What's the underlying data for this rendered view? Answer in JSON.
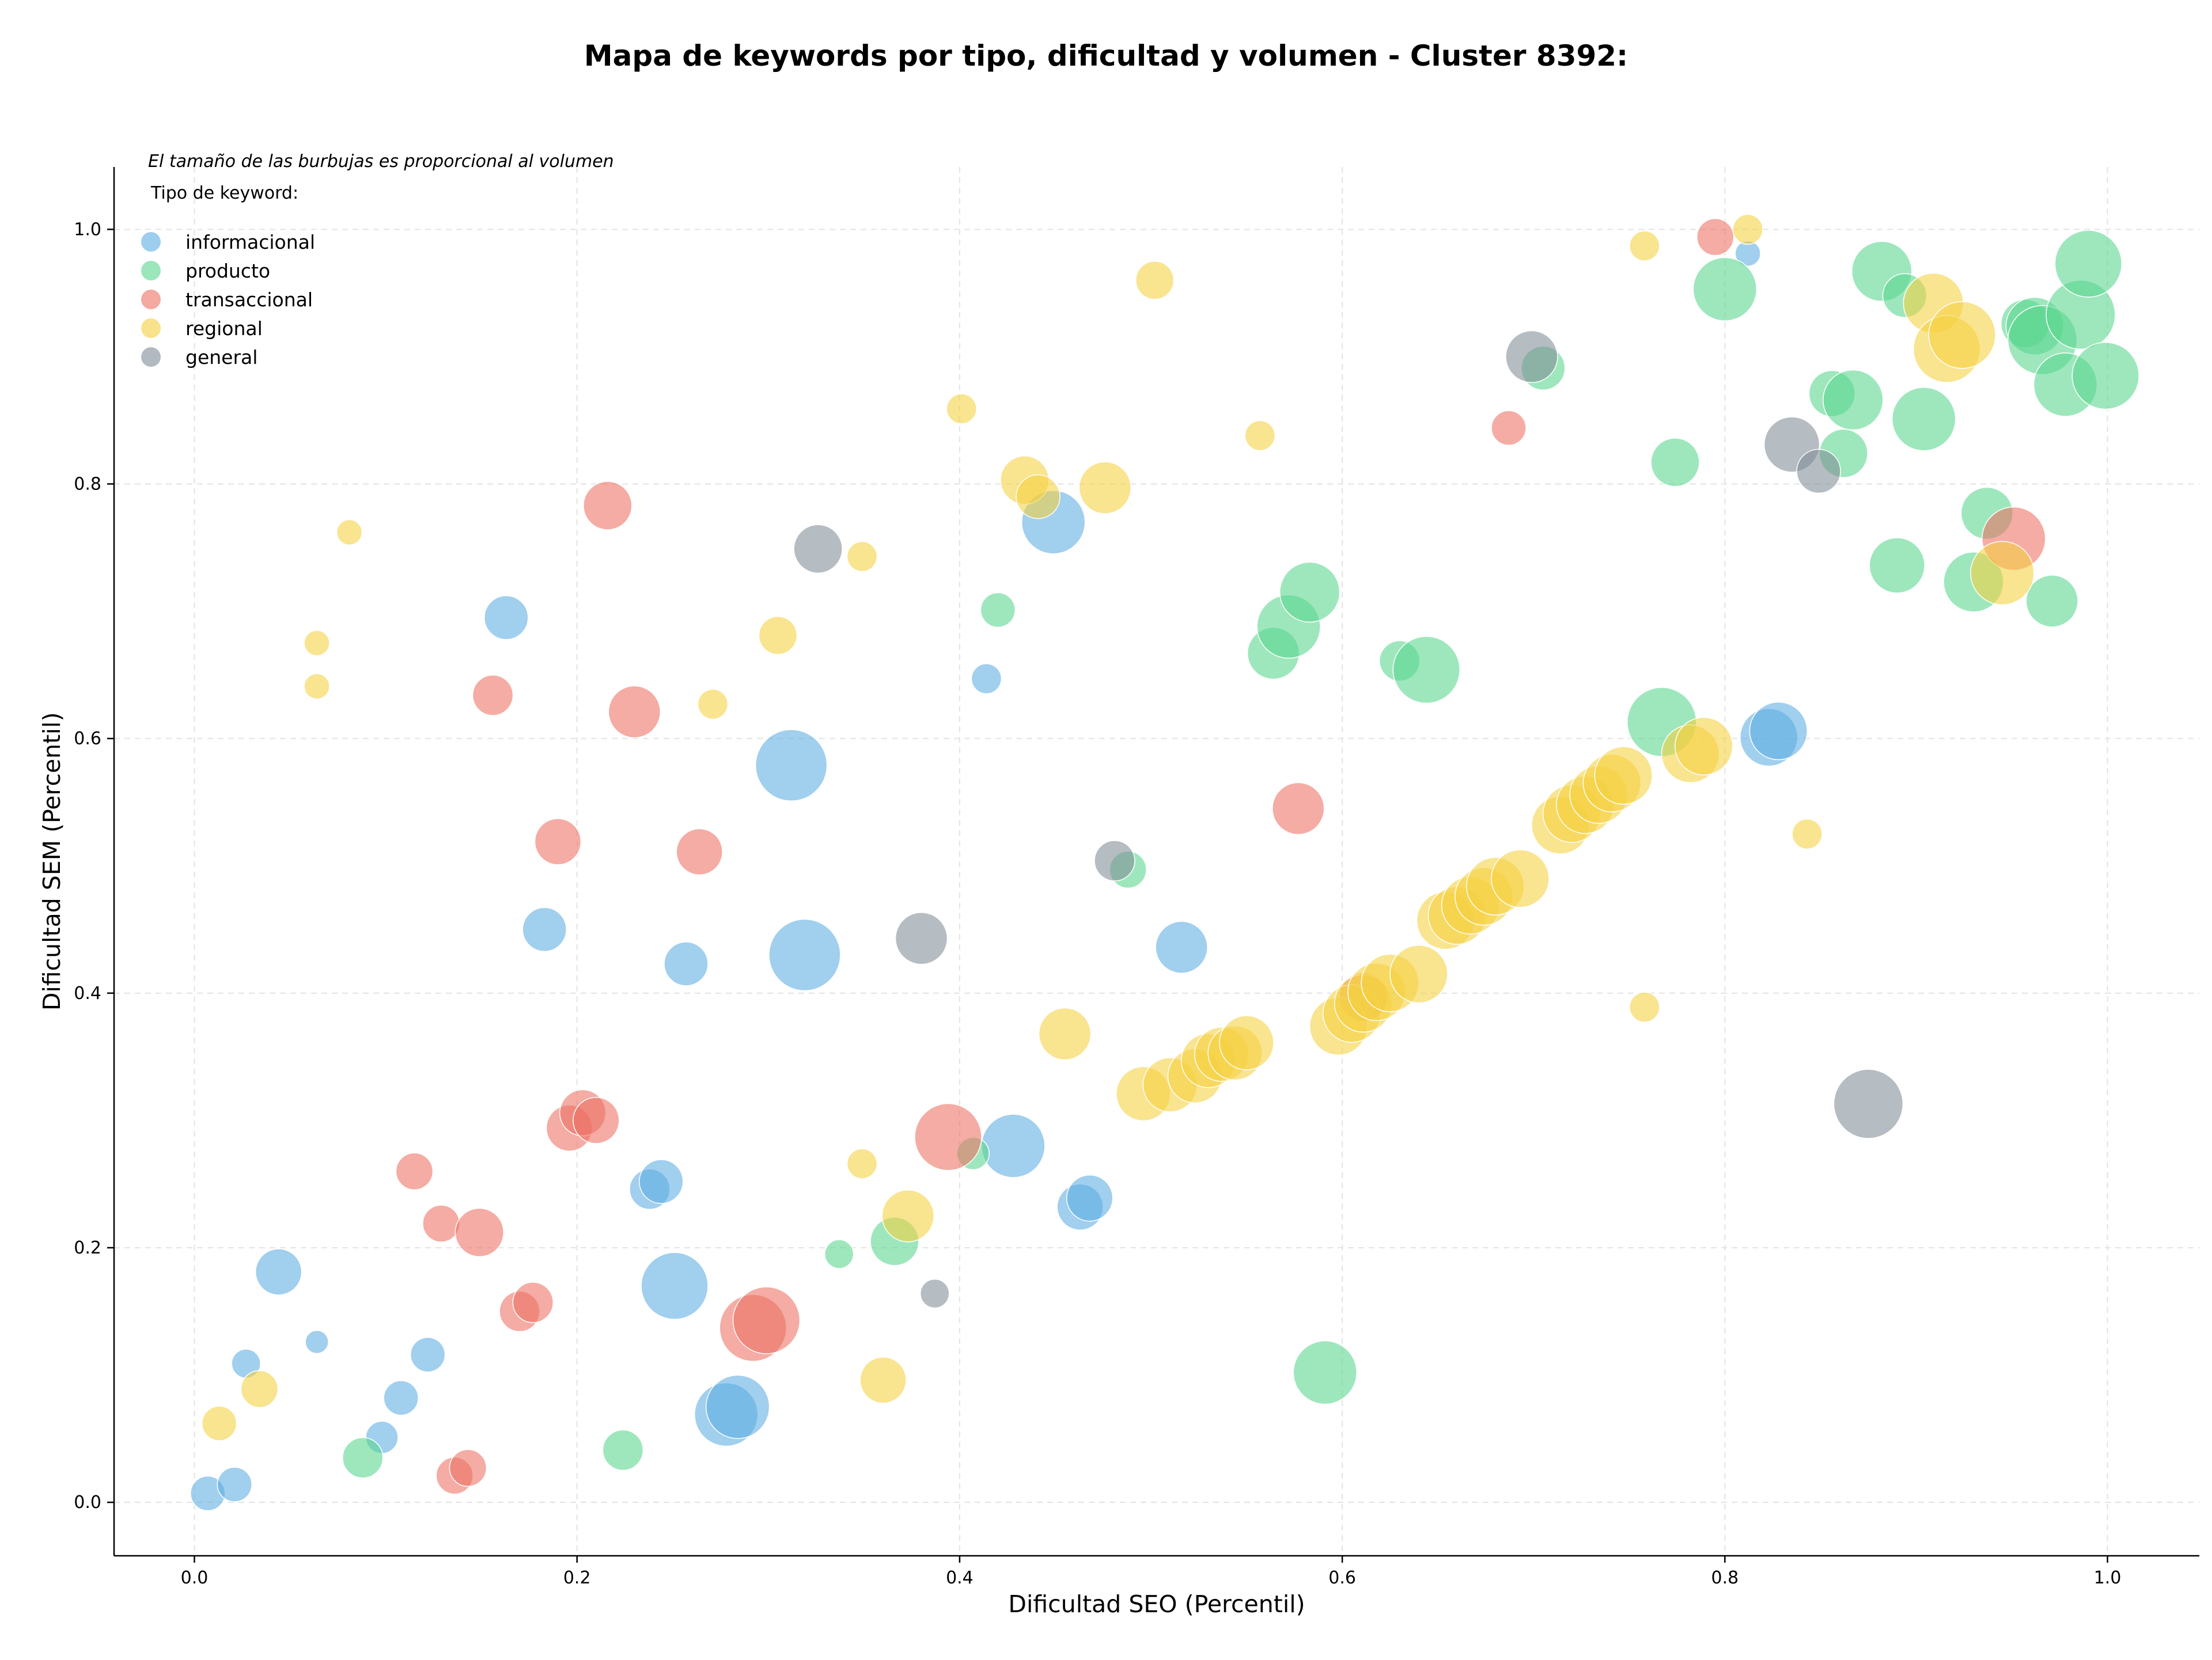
{
  "chart_data": {
    "type": "scatter",
    "title": "Mapa de keywords por tipo, dificultad y volumen - Cluster 8392:",
    "xlabel": "Dificultad SEO (Percentil)",
    "ylabel": "Dificultad SEM (Percentil)",
    "xlim": [
      -0.042,
      1.048
    ],
    "ylim": [
      -0.042,
      1.049
    ],
    "xticks": [
      "0.0",
      "0.2",
      "0.4",
      "0.6",
      "0.8",
      "1.0"
    ],
    "yticks": [
      "0.0",
      "0.2",
      "0.4",
      "0.6",
      "0.8",
      "1.0"
    ],
    "grid": true,
    "note": "El tamaño de las burbujas es proporcional al volumen",
    "legend_title": "Tipo de keyword:",
    "legend_position": "top-left",
    "series": [
      {
        "name": "informacional",
        "color": "#5dade2",
        "points": [
          [
            0.007,
            0.007,
            30
          ],
          [
            0.021,
            0.014,
            30
          ],
          [
            0.027,
            0.109,
            25
          ],
          [
            0.044,
            0.181,
            40
          ],
          [
            0.064,
            0.126,
            20
          ],
          [
            0.098,
            0.051,
            28
          ],
          [
            0.108,
            0.082,
            30
          ],
          [
            0.122,
            0.116,
            30
          ],
          [
            0.163,
            0.695,
            38
          ],
          [
            0.183,
            0.45,
            38
          ],
          [
            0.238,
            0.246,
            35
          ],
          [
            0.244,
            0.252,
            38
          ],
          [
            0.251,
            0.17,
            58
          ],
          [
            0.257,
            0.423,
            38
          ],
          [
            0.278,
            0.069,
            55
          ],
          [
            0.284,
            0.075,
            55
          ],
          [
            0.312,
            0.579,
            62
          ],
          [
            0.319,
            0.43,
            62
          ],
          [
            0.414,
            0.647,
            26
          ],
          [
            0.428,
            0.28,
            55
          ],
          [
            0.449,
            0.77,
            55
          ],
          [
            0.463,
            0.232,
            40
          ],
          [
            0.468,
            0.239,
            40
          ],
          [
            0.516,
            0.436,
            45
          ],
          [
            0.812,
            0.981,
            22
          ],
          [
            0.823,
            0.601,
            50
          ],
          [
            0.828,
            0.606,
            50
          ]
        ]
      },
      {
        "name": "producto",
        "color": "#58d68d",
        "points": [
          [
            0.088,
            0.035,
            35
          ],
          [
            0.224,
            0.041,
            35
          ],
          [
            0.337,
            0.195,
            25
          ],
          [
            0.366,
            0.205,
            42
          ],
          [
            0.407,
            0.274,
            28
          ],
          [
            0.42,
            0.701,
            30
          ],
          [
            0.488,
            0.497,
            32
          ],
          [
            0.564,
            0.667,
            45
          ],
          [
            0.572,
            0.688,
            55
          ],
          [
            0.583,
            0.715,
            52
          ],
          [
            0.591,
            0.102,
            55
          ],
          [
            0.63,
            0.661,
            35
          ],
          [
            0.644,
            0.654,
            58
          ],
          [
            0.705,
            0.891,
            38
          ],
          [
            0.767,
            0.613,
            60
          ],
          [
            0.774,
            0.817,
            42
          ],
          [
            0.8,
            0.953,
            55
          ],
          [
            0.856,
            0.871,
            40
          ],
          [
            0.862,
            0.824,
            42
          ],
          [
            0.867,
            0.866,
            52
          ],
          [
            0.882,
            0.967,
            52
          ],
          [
            0.89,
            0.736,
            48
          ],
          [
            0.894,
            0.948,
            38
          ],
          [
            0.904,
            0.851,
            55
          ],
          [
            0.93,
            0.723,
            52
          ],
          [
            0.937,
            0.777,
            45
          ],
          [
            0.957,
            0.926,
            42
          ],
          [
            0.962,
            0.924,
            50
          ],
          [
            0.966,
            0.913,
            60
          ],
          [
            0.971,
            0.708,
            45
          ],
          [
            0.978,
            0.878,
            55
          ],
          [
            0.986,
            0.933,
            60
          ],
          [
            0.99,
            0.973,
            58
          ],
          [
            0.999,
            0.885,
            58
          ]
        ]
      },
      {
        "name": "transaccional",
        "color": "#ec7063",
        "points": [
          [
            0.115,
            0.26,
            32
          ],
          [
            0.129,
            0.219,
            32
          ],
          [
            0.136,
            0.021,
            32
          ],
          [
            0.143,
            0.027,
            32
          ],
          [
            0.149,
            0.212,
            42
          ],
          [
            0.17,
            0.15,
            35
          ],
          [
            0.177,
            0.157,
            35
          ],
          [
            0.156,
            0.634,
            35
          ],
          [
            0.19,
            0.519,
            40
          ],
          [
            0.196,
            0.294,
            40
          ],
          [
            0.203,
            0.306,
            40
          ],
          [
            0.21,
            0.3,
            40
          ],
          [
            0.216,
            0.783,
            42
          ],
          [
            0.23,
            0.621,
            45
          ],
          [
            0.264,
            0.511,
            40
          ],
          [
            0.292,
            0.137,
            58
          ],
          [
            0.299,
            0.143,
            58
          ],
          [
            0.394,
            0.287,
            58
          ],
          [
            0.577,
            0.545,
            45
          ],
          [
            0.611,
            0.397,
            42
          ],
          [
            0.687,
            0.844,
            30
          ],
          [
            0.795,
            0.994,
            32
          ],
          [
            0.951,
            0.757,
            55
          ]
        ]
      },
      {
        "name": "regional",
        "color": "#f4d03f",
        "points": [
          [
            0.013,
            0.062,
            30
          ],
          [
            0.034,
            0.089,
            32
          ],
          [
            0.064,
            0.641,
            22
          ],
          [
            0.064,
            0.675,
            22
          ],
          [
            0.081,
            0.762,
            22
          ],
          [
            0.271,
            0.627,
            26
          ],
          [
            0.305,
            0.681,
            33
          ],
          [
            0.349,
            0.743,
            26
          ],
          [
            0.349,
            0.266,
            26
          ],
          [
            0.36,
            0.096,
            40
          ],
          [
            0.373,
            0.225,
            45
          ],
          [
            0.401,
            0.859,
            26
          ],
          [
            0.434,
            0.803,
            42
          ],
          [
            0.441,
            0.79,
            38
          ],
          [
            0.455,
            0.368,
            45
          ],
          [
            0.476,
            0.797,
            45
          ],
          [
            0.496,
            0.321,
            47
          ],
          [
            0.502,
            0.96,
            33
          ],
          [
            0.51,
            0.328,
            47
          ],
          [
            0.523,
            0.335,
            47
          ],
          [
            0.53,
            0.347,
            47
          ],
          [
            0.537,
            0.352,
            47
          ],
          [
            0.544,
            0.353,
            47
          ],
          [
            0.55,
            0.361,
            47
          ],
          [
            0.557,
            0.838,
            26
          ],
          [
            0.598,
            0.374,
            50
          ],
          [
            0.605,
            0.384,
            50
          ],
          [
            0.611,
            0.392,
            50
          ],
          [
            0.618,
            0.401,
            50
          ],
          [
            0.625,
            0.408,
            50
          ],
          [
            0.64,
            0.415,
            50
          ],
          [
            0.654,
            0.457,
            50
          ],
          [
            0.66,
            0.461,
            50
          ],
          [
            0.667,
            0.469,
            50
          ],
          [
            0.674,
            0.476,
            50
          ],
          [
            0.68,
            0.484,
            50
          ],
          [
            0.693,
            0.49,
            50
          ],
          [
            0.714,
            0.532,
            50
          ],
          [
            0.72,
            0.541,
            50
          ],
          [
            0.727,
            0.548,
            50
          ],
          [
            0.734,
            0.556,
            50
          ],
          [
            0.741,
            0.565,
            50
          ],
          [
            0.747,
            0.571,
            50
          ],
          [
            0.758,
            0.389,
            26
          ],
          [
            0.758,
            0.987,
            26
          ],
          [
            0.782,
            0.588,
            50
          ],
          [
            0.789,
            0.594,
            50
          ],
          [
            0.812,
            1.0,
            26
          ],
          [
            0.843,
            0.525,
            26
          ],
          [
            0.909,
            0.942,
            52
          ],
          [
            0.916,
            0.906,
            58
          ],
          [
            0.924,
            0.917,
            58
          ],
          [
            0.945,
            0.73,
            55
          ]
        ]
      },
      {
        "name": "general",
        "color": "#808b96",
        "points": [
          [
            0.326,
            0.749,
            42
          ],
          [
            0.38,
            0.443,
            45
          ],
          [
            0.387,
            0.164,
            25
          ],
          [
            0.481,
            0.504,
            35
          ],
          [
            0.699,
            0.9,
            45
          ],
          [
            0.835,
            0.831,
            48
          ],
          [
            0.849,
            0.81,
            38
          ],
          [
            0.875,
            0.313,
            60
          ]
        ]
      }
    ]
  }
}
